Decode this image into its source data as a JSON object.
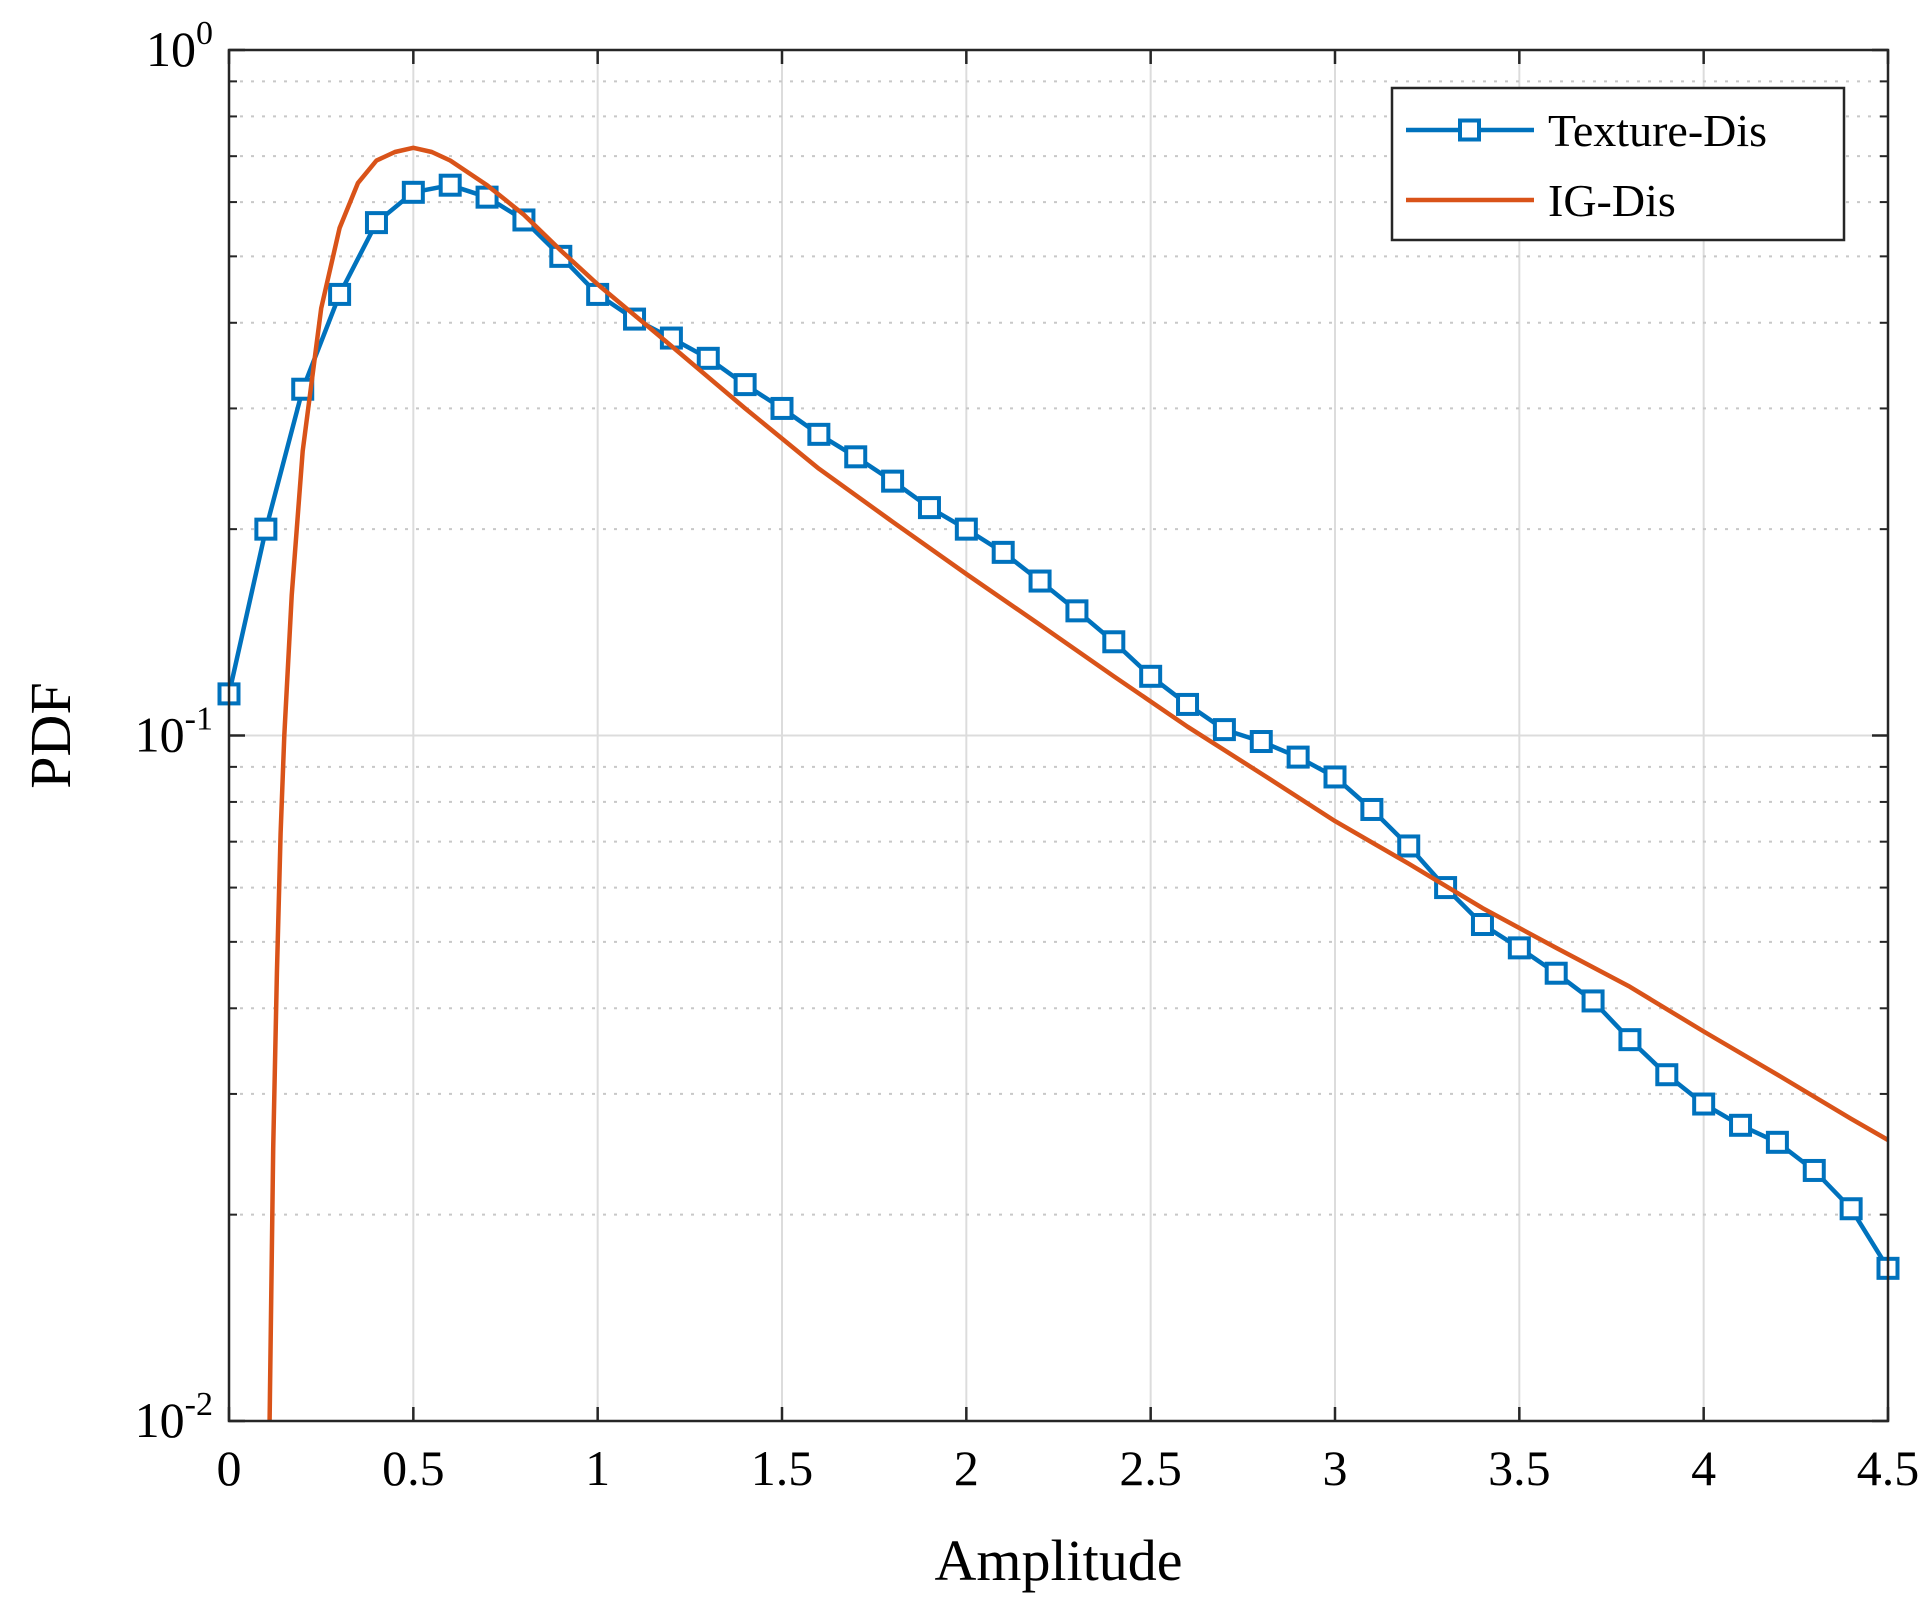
{
  "chart_data": {
    "type": "line",
    "y_scale": "log",
    "title": "",
    "xlabel": "Amplitude",
    "ylabel": "PDF",
    "xlim": [
      0,
      4.5
    ],
    "ylim": [
      0.01,
      1
    ],
    "x_ticks": [
      "0",
      "0.5",
      "1",
      "1.5",
      "2",
      "2.5",
      "3",
      "3.5",
      "4",
      "4.5"
    ],
    "y_ticks": [
      {
        "base": "10",
        "exp": "-2"
      },
      {
        "base": "10",
        "exp": "-1"
      },
      {
        "base": "10",
        "exp": "0"
      }
    ],
    "grid": true,
    "legend_position": "top-right",
    "series": [
      {
        "name": "Texture-Dis",
        "color": "#0072BD",
        "marker": "square",
        "x": [
          0,
          0.1,
          0.2,
          0.3,
          0.4,
          0.5,
          0.6,
          0.7,
          0.8,
          0.9,
          1.0,
          1.1,
          1.2,
          1.3,
          1.4,
          1.5,
          1.6,
          1.7,
          1.8,
          1.9,
          2.0,
          2.1,
          2.2,
          2.3,
          2.4,
          2.5,
          2.6,
          2.7,
          2.8,
          2.9,
          3.0,
          3.1,
          3.2,
          3.3,
          3.4,
          3.5,
          3.6,
          3.7,
          3.8,
          3.9,
          4.0,
          4.1,
          4.2,
          4.3,
          4.4,
          4.5
        ],
        "y": [
          0.115,
          0.2,
          0.32,
          0.44,
          0.56,
          0.62,
          0.635,
          0.61,
          0.565,
          0.5,
          0.44,
          0.405,
          0.38,
          0.355,
          0.325,
          0.3,
          0.275,
          0.255,
          0.235,
          0.215,
          0.2,
          0.185,
          0.168,
          0.152,
          0.137,
          0.122,
          0.111,
          0.102,
          0.098,
          0.093,
          0.087,
          0.078,
          0.069,
          0.06,
          0.053,
          0.049,
          0.045,
          0.041,
          0.036,
          0.032,
          0.029,
          0.027,
          0.0255,
          0.0232,
          0.0204,
          0.0167
        ]
      },
      {
        "name": "IG-Dis",
        "color": "#D95319",
        "marker": "none",
        "x": [
          0.11,
          0.12,
          0.13,
          0.14,
          0.15,
          0.17,
          0.2,
          0.25,
          0.3,
          0.35,
          0.4,
          0.45,
          0.5,
          0.55,
          0.6,
          0.7,
          0.8,
          0.9,
          1.0,
          1.2,
          1.4,
          1.6,
          1.8,
          2.0,
          2.2,
          2.4,
          2.6,
          2.8,
          3.0,
          3.2,
          3.4,
          3.6,
          3.8,
          4.0,
          4.2,
          4.4,
          4.5
        ],
        "y": [
          0.01,
          0.025,
          0.045,
          0.072,
          0.1,
          0.16,
          0.26,
          0.42,
          0.55,
          0.64,
          0.69,
          0.71,
          0.72,
          0.71,
          0.69,
          0.635,
          0.575,
          0.51,
          0.455,
          0.37,
          0.3,
          0.245,
          0.205,
          0.172,
          0.145,
          0.122,
          0.103,
          0.088,
          0.075,
          0.065,
          0.056,
          0.049,
          0.043,
          0.037,
          0.032,
          0.0276,
          0.0257
        ]
      }
    ]
  }
}
